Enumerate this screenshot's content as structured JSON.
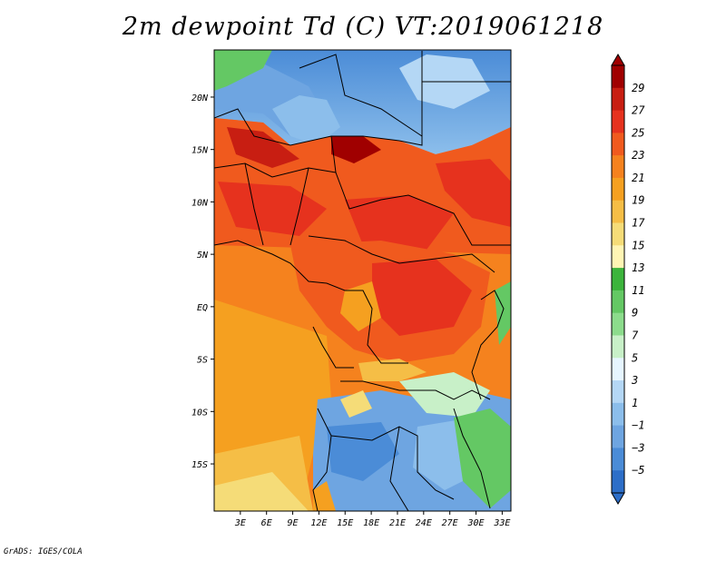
{
  "title": "2m dewpoint Td (C) VT:2019061218",
  "footer": "GrADS: IGES/COLA",
  "lat_labels": [
    "20N",
    "15N",
    "10N",
    "5N",
    "EQ",
    "5S",
    "10S",
    "15S"
  ],
  "lat_values": [
    20,
    15,
    10,
    5,
    0,
    -5,
    -10,
    -15
  ],
  "lon_labels": [
    "3E",
    "6E",
    "9E",
    "12E",
    "15E",
    "18E",
    "21E",
    "24E",
    "27E",
    "30E",
    "33E"
  ],
  "lon_values": [
    3,
    6,
    9,
    12,
    15,
    18,
    21,
    24,
    27,
    30,
    33
  ],
  "extent": {
    "lon_min": 0,
    "lon_max": 34,
    "lat_min": -19.5,
    "lat_max": 24.5
  },
  "colorbar": {
    "labels": [
      "29",
      "27",
      "25",
      "23",
      "21",
      "19",
      "17",
      "15",
      "13",
      "11",
      "9",
      "7",
      "5",
      "3",
      "1",
      "−1",
      "−3",
      "−5"
    ],
    "colors": [
      "#a00000",
      "#c81e12",
      "#e6321e",
      "#f05a1e",
      "#f5821e",
      "#f5a020",
      "#f5be46",
      "#f5dc78",
      "#fff5b4",
      "#3cb43c",
      "#64c864",
      "#8cdc8c",
      "#c8f0c8",
      "#e6f5ff",
      "#b4d7f5",
      "#8cbeeb",
      "#6ea5e1",
      "#4b8cd7",
      "#2d6ec8"
    ]
  }
}
